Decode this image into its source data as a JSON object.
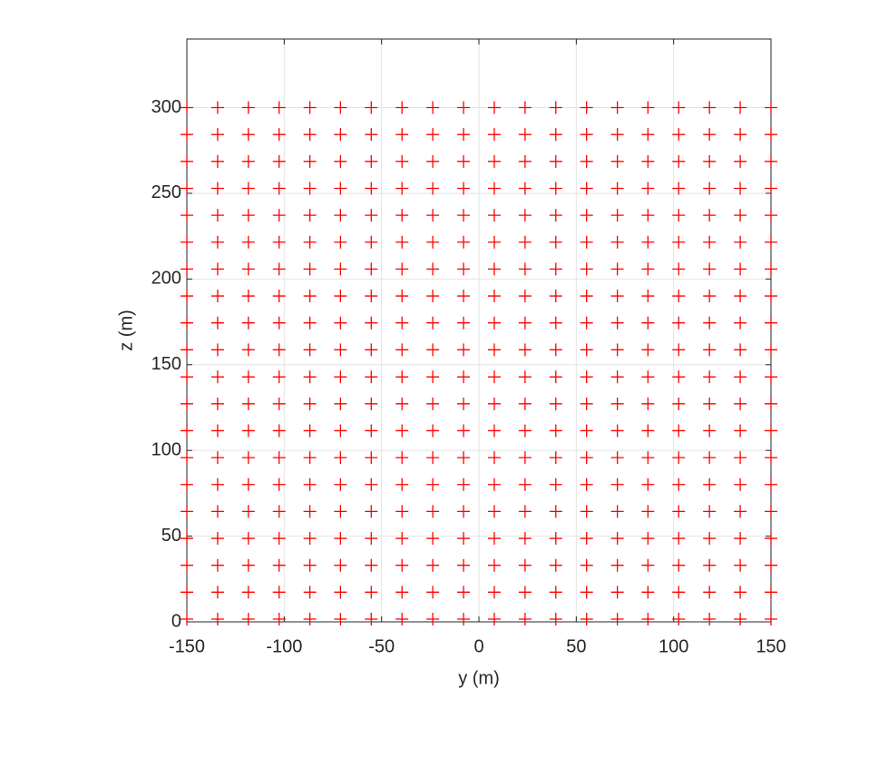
{
  "chart_data": {
    "type": "scatter",
    "xlabel": "y (m)",
    "ylabel": "z (m)",
    "marker": "+",
    "color": "#ff0000",
    "grid": true,
    "xlim": [
      -150,
      150
    ],
    "ylim": [
      0,
      340
    ],
    "xticks": [
      -150,
      -100,
      -50,
      0,
      50,
      100,
      150
    ],
    "yticks": [
      0,
      50,
      100,
      150,
      200,
      250,
      300
    ],
    "x": [
      -150,
      -134.2,
      -118.4,
      -102.6,
      -86.8,
      -71.1,
      -55.3,
      -39.5,
      -23.7,
      -7.9,
      7.9,
      23.7,
      39.5,
      55.3,
      71.1,
      86.8,
      102.6,
      118.4,
      134.2,
      150,
      -150,
      -134.2,
      -118.4,
      -102.6,
      -86.8,
      -71.1,
      -55.3,
      -39.5,
      -23.7,
      -7.9,
      7.9,
      23.7,
      39.5,
      55.3,
      71.1,
      86.8,
      102.6,
      118.4,
      134.2,
      150,
      -150,
      -134.2,
      -118.4,
      -102.6,
      -86.8,
      -71.1,
      -55.3,
      -39.5,
      -23.7,
      -7.9,
      7.9,
      23.7,
      39.5,
      55.3,
      71.1,
      86.8,
      102.6,
      118.4,
      134.2,
      150,
      -150,
      -134.2,
      -118.4,
      -102.6,
      -86.8,
      -71.1,
      -55.3,
      -39.5,
      -23.7,
      -7.9,
      7.9,
      23.7,
      39.5,
      55.3,
      71.1,
      86.8,
      102.6,
      118.4,
      134.2,
      150,
      -150,
      -134.2,
      -118.4,
      -102.6,
      -86.8,
      -71.1,
      -55.3,
      -39.5,
      -23.7,
      -7.9,
      7.9,
      23.7,
      39.5,
      55.3,
      71.1,
      86.8,
      102.6,
      118.4,
      134.2,
      150,
      -150,
      -134.2,
      -118.4,
      -102.6,
      -86.8,
      -71.1,
      -55.3,
      -39.5,
      -23.7,
      -7.9,
      7.9,
      23.7,
      39.5,
      55.3,
      71.1,
      86.8,
      102.6,
      118.4,
      134.2,
      150,
      -150,
      -134.2,
      -118.4,
      -102.6,
      -86.8,
      -71.1,
      -55.3,
      -39.5,
      -23.7,
      -7.9,
      7.9,
      23.7,
      39.5,
      55.3,
      71.1,
      86.8,
      102.6,
      118.4,
      134.2,
      150,
      -150,
      -134.2,
      -118.4,
      -102.6,
      -86.8,
      -71.1,
      -55.3,
      -39.5,
      -23.7,
      -7.9,
      7.9,
      23.7,
      39.5,
      55.3,
      71.1,
      86.8,
      102.6,
      118.4,
      134.2,
      150,
      -150,
      -134.2,
      -118.4,
      -102.6,
      -86.8,
      -71.1,
      -55.3,
      -39.5,
      -23.7,
      -7.9,
      7.9,
      23.7,
      39.5,
      55.3,
      71.1,
      86.8,
      102.6,
      118.4,
      134.2,
      150,
      -150,
      -134.2,
      -118.4,
      -102.6,
      -86.8,
      -71.1,
      -55.3,
      -39.5,
      -23.7,
      -7.9,
      7.9,
      23.7,
      39.5,
      55.3,
      71.1,
      86.8,
      102.6,
      118.4,
      134.2,
      150,
      -150,
      -134.2,
      -118.4,
      -102.6,
      -86.8,
      -71.1,
      -55.3,
      -39.5,
      -23.7,
      -7.9,
      7.9,
      23.7,
      39.5,
      55.3,
      71.1,
      86.8,
      102.6,
      118.4,
      134.2,
      150,
      -150,
      -134.2,
      -118.4,
      -102.6,
      -86.8,
      -71.1,
      -55.3,
      -39.5,
      -23.7,
      -7.9,
      7.9,
      23.7,
      39.5,
      55.3,
      71.1,
      86.8,
      102.6,
      118.4,
      134.2,
      150,
      -150,
      -134.2,
      -118.4,
      -102.6,
      -86.8,
      -71.1,
      -55.3,
      -39.5,
      -23.7,
      -7.9,
      7.9,
      23.7,
      39.5,
      55.3,
      71.1,
      86.8,
      102.6,
      118.4,
      134.2,
      150,
      -150,
      -134.2,
      -118.4,
      -102.6,
      -86.8,
      -71.1,
      -55.3,
      -39.5,
      -23.7,
      -7.9,
      7.9,
      23.7,
      39.5,
      55.3,
      71.1,
      86.8,
      102.6,
      118.4,
      134.2,
      150,
      -150,
      -134.2,
      -118.4,
      -102.6,
      -86.8,
      -71.1,
      -55.3,
      -39.5,
      -23.7,
      -7.9,
      7.9,
      23.7,
      39.5,
      55.3,
      71.1,
      86.8,
      102.6,
      118.4,
      134.2,
      150,
      -150,
      -134.2,
      -118.4,
      -102.6,
      -86.8,
      -71.1,
      -55.3,
      -39.5,
      -23.7,
      -7.9,
      7.9,
      23.7,
      39.5,
      55.3,
      71.1,
      86.8,
      102.6,
      118.4,
      134.2,
      150,
      -150,
      -134.2,
      -118.4,
      -102.6,
      -86.8,
      -71.1,
      -55.3,
      -39.5,
      -23.7,
      -7.9,
      7.9,
      23.7,
      39.5,
      55.3,
      71.1,
      86.8,
      102.6,
      118.4,
      134.2,
      150,
      -150,
      -134.2,
      -118.4,
      -102.6,
      -86.8,
      -71.1,
      -55.3,
      -39.5,
      -23.7,
      -7.9,
      7.9,
      23.7,
      39.5,
      55.3,
      71.1,
      86.8,
      102.6,
      118.4,
      134.2,
      150,
      -150,
      -134.2,
      -118.4,
      -102.6,
      -86.8,
      -71.1,
      -55.3,
      -39.5,
      -23.7,
      -7.9,
      7.9,
      23.7,
      39.5,
      55.3,
      71.1,
      86.8,
      102.6,
      118.4,
      134.2,
      150,
      -150,
      -134.2,
      -118.4,
      -102.6,
      -86.8,
      -71.1,
      -55.3,
      -39.5,
      -23.7,
      -7.9,
      7.9,
      23.7,
      39.5,
      55.3,
      71.1,
      86.8,
      102.6,
      118.4,
      134.2,
      150
    ],
    "y": [
      1.6,
      1.6,
      1.6,
      1.6,
      1.6,
      1.6,
      1.6,
      1.6,
      1.6,
      1.6,
      1.6,
      1.6,
      1.6,
      1.6,
      1.6,
      1.6,
      1.6,
      1.6,
      1.6,
      1.6,
      17.3,
      17.3,
      17.3,
      17.3,
      17.3,
      17.3,
      17.3,
      17.3,
      17.3,
      17.3,
      17.3,
      17.3,
      17.3,
      17.3,
      17.3,
      17.3,
      17.3,
      17.3,
      17.3,
      17.3,
      33,
      33,
      33,
      33,
      33,
      33,
      33,
      33,
      33,
      33,
      33,
      33,
      33,
      33,
      33,
      33,
      33,
      33,
      33,
      33,
      48.7,
      48.7,
      48.7,
      48.7,
      48.7,
      48.7,
      48.7,
      48.7,
      48.7,
      48.7,
      48.7,
      48.7,
      48.7,
      48.7,
      48.7,
      48.7,
      48.7,
      48.7,
      48.7,
      48.7,
      64.4,
      64.4,
      64.4,
      64.4,
      64.4,
      64.4,
      64.4,
      64.4,
      64.4,
      64.4,
      64.4,
      64.4,
      64.4,
      64.4,
      64.4,
      64.4,
      64.4,
      64.4,
      64.4,
      64.4,
      80.1,
      80.1,
      80.1,
      80.1,
      80.1,
      80.1,
      80.1,
      80.1,
      80.1,
      80.1,
      80.1,
      80.1,
      80.1,
      80.1,
      80.1,
      80.1,
      80.1,
      80.1,
      80.1,
      80.1,
      95.8,
      95.8,
      95.8,
      95.8,
      95.8,
      95.8,
      95.8,
      95.8,
      95.8,
      95.8,
      95.8,
      95.8,
      95.8,
      95.8,
      95.8,
      95.8,
      95.8,
      95.8,
      95.8,
      95.8,
      111.5,
      111.5,
      111.5,
      111.5,
      111.5,
      111.5,
      111.5,
      111.5,
      111.5,
      111.5,
      111.5,
      111.5,
      111.5,
      111.5,
      111.5,
      111.5,
      111.5,
      111.5,
      111.5,
      111.5,
      127.2,
      127.2,
      127.2,
      127.2,
      127.2,
      127.2,
      127.2,
      127.2,
      127.2,
      127.2,
      127.2,
      127.2,
      127.2,
      127.2,
      127.2,
      127.2,
      127.2,
      127.2,
      127.2,
      127.2,
      142.9,
      142.9,
      142.9,
      142.9,
      142.9,
      142.9,
      142.9,
      142.9,
      142.9,
      142.9,
      142.9,
      142.9,
      142.9,
      142.9,
      142.9,
      142.9,
      142.9,
      142.9,
      142.9,
      142.9,
      158.7,
      158.7,
      158.7,
      158.7,
      158.7,
      158.7,
      158.7,
      158.7,
      158.7,
      158.7,
      158.7,
      158.7,
      158.7,
      158.7,
      158.7,
      158.7,
      158.7,
      158.7,
      158.7,
      158.7,
      174.4,
      174.4,
      174.4,
      174.4,
      174.4,
      174.4,
      174.4,
      174.4,
      174.4,
      174.4,
      174.4,
      174.4,
      174.4,
      174.4,
      174.4,
      174.4,
      174.4,
      174.4,
      174.4,
      174.4,
      190.1,
      190.1,
      190.1,
      190.1,
      190.1,
      190.1,
      190.1,
      190.1,
      190.1,
      190.1,
      190.1,
      190.1,
      190.1,
      190.1,
      190.1,
      190.1,
      190.1,
      190.1,
      190.1,
      190.1,
      205.8,
      205.8,
      205.8,
      205.8,
      205.8,
      205.8,
      205.8,
      205.8,
      205.8,
      205.8,
      205.8,
      205.8,
      205.8,
      205.8,
      205.8,
      205.8,
      205.8,
      205.8,
      205.8,
      205.8,
      221.5,
      221.5,
      221.5,
      221.5,
      221.5,
      221.5,
      221.5,
      221.5,
      221.5,
      221.5,
      221.5,
      221.5,
      221.5,
      221.5,
      221.5,
      221.5,
      221.5,
      221.5,
      221.5,
      221.5,
      237.2,
      237.2,
      237.2,
      237.2,
      237.2,
      237.2,
      237.2,
      237.2,
      237.2,
      237.2,
      237.2,
      237.2,
      237.2,
      237.2,
      237.2,
      237.2,
      237.2,
      237.2,
      237.2,
      237.2,
      252.9,
      252.9,
      252.9,
      252.9,
      252.9,
      252.9,
      252.9,
      252.9,
      252.9,
      252.9,
      252.9,
      252.9,
      252.9,
      252.9,
      252.9,
      252.9,
      252.9,
      252.9,
      252.9,
      252.9,
      268.6,
      268.6,
      268.6,
      268.6,
      268.6,
      268.6,
      268.6,
      268.6,
      268.6,
      268.6,
      268.6,
      268.6,
      268.6,
      268.6,
      268.6,
      268.6,
      268.6,
      268.6,
      268.6,
      268.6,
      284.3,
      284.3,
      284.3,
      284.3,
      284.3,
      284.3,
      284.3,
      284.3,
      284.3,
      284.3,
      284.3,
      284.3,
      284.3,
      284.3,
      284.3,
      284.3,
      284.3,
      284.3,
      284.3,
      284.3,
      300,
      300,
      300,
      300,
      300,
      300,
      300,
      300,
      300,
      300,
      300,
      300,
      300,
      300,
      300,
      300,
      300,
      300,
      300,
      300
    ]
  }
}
